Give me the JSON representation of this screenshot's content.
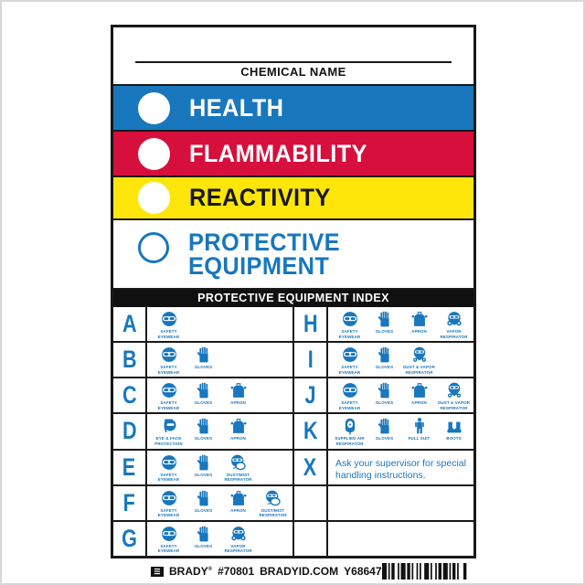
{
  "label": {
    "chemical_name_caption": "CHEMICAL NAME",
    "bars": [
      {
        "id": "health",
        "label": "HEALTH",
        "bg": "#1877bd",
        "text_color": "#ffffff",
        "circle": "filled-white"
      },
      {
        "id": "flammability",
        "label": "FLAMMABILITY",
        "bg": "#d60f3c",
        "text_color": "#ffffff",
        "circle": "filled-white"
      },
      {
        "id": "reactivity",
        "label": "REACTIVITY",
        "bg": "#ffe60a",
        "text_color": "#181818",
        "circle": "filled-white"
      },
      {
        "id": "protective-equipment",
        "label": "PROTECTIVE EQUIPMENT",
        "bg": "#ffffff",
        "text_color": "#1877bd",
        "circle": "outlined-blue"
      }
    ],
    "index_header": "PROTECTIVE EQUIPMENT INDEX",
    "index_rows_left": [
      {
        "letter": "A",
        "icons": [
          {
            "icon": "safety-eyewear",
            "label": "SAFETY EYEWEAR"
          }
        ]
      },
      {
        "letter": "B",
        "icons": [
          {
            "icon": "safety-eyewear",
            "label": "SAFETY EYEWEAR"
          },
          {
            "icon": "gloves",
            "label": "GLOVES"
          }
        ]
      },
      {
        "letter": "C",
        "icons": [
          {
            "icon": "safety-eyewear",
            "label": "SAFETY EYEWEAR"
          },
          {
            "icon": "gloves",
            "label": "GLOVES"
          },
          {
            "icon": "apron",
            "label": "APRON"
          }
        ]
      },
      {
        "letter": "D",
        "icons": [
          {
            "icon": "eye-face-protection",
            "label": "EYE & FACE PROTECTION"
          },
          {
            "icon": "gloves",
            "label": "GLOVES"
          },
          {
            "icon": "apron",
            "label": "APRON"
          }
        ]
      },
      {
        "letter": "E",
        "icons": [
          {
            "icon": "safety-eyewear",
            "label": "SAFETY EYEWEAR"
          },
          {
            "icon": "gloves",
            "label": "GLOVES"
          },
          {
            "icon": "dust-mist-respirator",
            "label": "DUST/MIST RESPIRATOR"
          }
        ]
      },
      {
        "letter": "F",
        "icons": [
          {
            "icon": "safety-eyewear",
            "label": "SAFETY EYEWEAR"
          },
          {
            "icon": "gloves",
            "label": "GLOVES"
          },
          {
            "icon": "apron",
            "label": "APRON"
          },
          {
            "icon": "dust-mist-respirator",
            "label": "DUST/MIST RESPIRATOR"
          }
        ]
      },
      {
        "letter": "G",
        "icons": [
          {
            "icon": "safety-eyewear",
            "label": "SAFETY EYEWEAR"
          },
          {
            "icon": "gloves",
            "label": "GLOVES"
          },
          {
            "icon": "vapor-respirator",
            "label": "VAPOR RESPIRATOR"
          }
        ]
      }
    ],
    "index_rows_right": [
      {
        "letter": "H",
        "icons": [
          {
            "icon": "safety-eyewear",
            "label": "SAFETY EYEWEAR"
          },
          {
            "icon": "gloves",
            "label": "GLOVES"
          },
          {
            "icon": "apron",
            "label": "APRON"
          },
          {
            "icon": "vapor-respirator",
            "label": "VAPOR RESPIRATOR"
          }
        ]
      },
      {
        "letter": "I",
        "icons": [
          {
            "icon": "safety-eyewear",
            "label": "SAFETY EYEWEAR"
          },
          {
            "icon": "gloves",
            "label": "GLOVES"
          },
          {
            "icon": "dust-vapor-respirator",
            "label": "DUST & VAPOR RESPIRATOR"
          }
        ]
      },
      {
        "letter": "J",
        "icons": [
          {
            "icon": "safety-eyewear",
            "label": "SAFETY EYEWEAR"
          },
          {
            "icon": "gloves",
            "label": "GLOVES"
          },
          {
            "icon": "apron",
            "label": "APRON"
          },
          {
            "icon": "dust-vapor-respirator",
            "label": "DUST & VAPOR RESPIRATOR"
          }
        ]
      },
      {
        "letter": "K",
        "icons": [
          {
            "icon": "supplied-air-respirator",
            "label": "SUPPLIED AIR RESPIRATOR"
          },
          {
            "icon": "gloves",
            "label": "GLOVES"
          },
          {
            "icon": "full-suit",
            "label": "FULL SUIT"
          },
          {
            "icon": "boots",
            "label": "BOOTS"
          }
        ]
      },
      {
        "letter": "X",
        "text": "Ask your supervisor for special handling instructions."
      },
      {
        "letter": "",
        "icons": []
      },
      {
        "letter": "",
        "icons": []
      }
    ],
    "footer": {
      "brand": "BRADY",
      "reg": "®",
      "part_number": "#70801",
      "website": "BRADYID.COM",
      "catalog": "Y68647"
    }
  },
  "colors": {
    "health_blue": "#1877bd",
    "flammability_red": "#d60f3c",
    "reactivity_yellow": "#ffe60a",
    "pictogram_blue": "#1877bd",
    "index_header_black": "#101010",
    "border_black": "#181818"
  }
}
